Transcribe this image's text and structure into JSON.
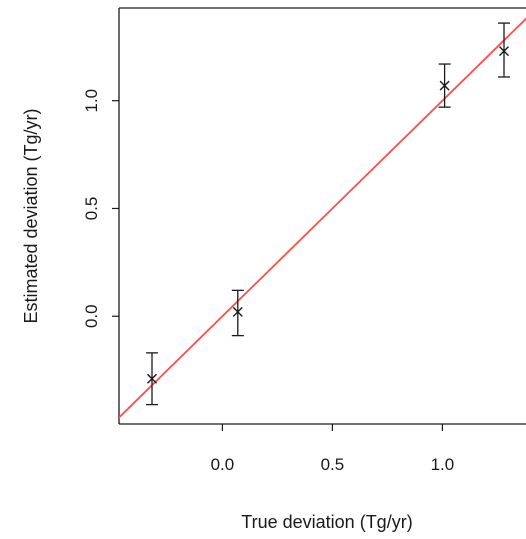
{
  "chart_data": {
    "type": "scatter",
    "title": "",
    "xlabel": "True deviation (Tg/yr)",
    "ylabel": "Estimated deviation (Tg/yr)",
    "xlim": [
      -0.47,
      1.38
    ],
    "ylim": [
      -0.5,
      1.43
    ],
    "x_ticks": [
      0.0,
      0.5,
      1.0
    ],
    "x_tick_labels": [
      "0.0",
      "0.5",
      "1.0"
    ],
    "y_ticks": [
      0.0,
      0.5,
      1.0
    ],
    "y_tick_labels": [
      "0.0",
      "0.5",
      "1.0"
    ],
    "grid": false,
    "box": "partial-open-right",
    "points": [
      {
        "x": -0.32,
        "y": -0.29,
        "lower": -0.41,
        "upper": -0.17
      },
      {
        "x": 0.07,
        "y": 0.02,
        "lower": -0.09,
        "upper": 0.12
      },
      {
        "x": 1.01,
        "y": 1.07,
        "lower": 0.97,
        "upper": 1.17
      },
      {
        "x": 1.28,
        "y": 1.23,
        "lower": 1.11,
        "upper": 1.36
      }
    ],
    "marker": "x",
    "reference_line": {
      "kind": "identity",
      "slope": 1,
      "intercept": 0,
      "color": "#ff4d4d"
    },
    "colors": {
      "points": "#1a1a1a",
      "errorbars": "#1a1a1a",
      "axes": "#1a1a1a"
    }
  }
}
